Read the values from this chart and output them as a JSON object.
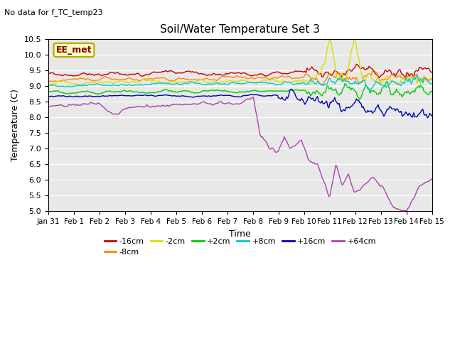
{
  "title": "Soil/Water Temperature Set 3",
  "subtitle": "No data for f_TC_temp23",
  "xlabel": "Time",
  "ylabel": "Temperature (C)",
  "annotation": "EE_met",
  "ylim": [
    5.0,
    10.5
  ],
  "fig_bg": "#ffffff",
  "plot_bg": "#e8e8e8",
  "series_colors": {
    "-16cm": "#cc0000",
    "-8cm": "#ff8800",
    "-2cm": "#dddd00",
    "+2cm": "#00cc00",
    "+8cm": "#00cccc",
    "+16cm": "#0000bb",
    "+64cm": "#aa44aa"
  },
  "series_labels": [
    "-16cm",
    "-8cm",
    "-2cm",
    "+2cm",
    "+8cm",
    "+16cm",
    "+64cm"
  ],
  "date_labels": [
    "Jan 31",
    "Feb 1",
    "Feb 2",
    "Feb 3",
    "Feb 4",
    "Feb 5",
    "Feb 6",
    "Feb 7",
    "Feb 8",
    "Feb 9",
    "Feb 10",
    "Feb 11",
    "Feb 12",
    "Feb 13",
    "Feb 14",
    "Feb 15"
  ],
  "num_points": 336
}
